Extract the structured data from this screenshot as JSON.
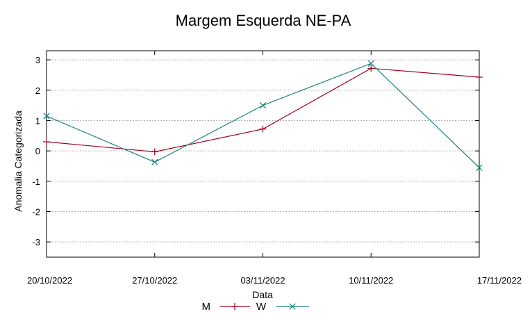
{
  "chart_data": {
    "type": "line",
    "title": "Margem Esquerda NE-PA",
    "xlabel": "Data",
    "ylabel": "Anomalia Categorizada",
    "x": [
      "20/10/2022",
      "27/10/2022",
      "03/11/2022",
      "10/11/2022",
      "17/11/2022"
    ],
    "y_ticks": [
      3,
      2,
      1,
      0,
      -1,
      -2,
      -3
    ],
    "ylim": [
      -3.5,
      3.3
    ],
    "grid": true,
    "legend_position": "bottom-center",
    "series": [
      {
        "name": "M",
        "color": "#a0001e",
        "marker": "plus",
        "values": [
          0.3,
          -0.03,
          0.72,
          2.72,
          2.43
        ]
      },
      {
        "name": "W",
        "color": "#1a8080",
        "marker": "cross",
        "values": [
          1.15,
          -0.37,
          1.5,
          2.88,
          -0.55
        ]
      }
    ]
  }
}
